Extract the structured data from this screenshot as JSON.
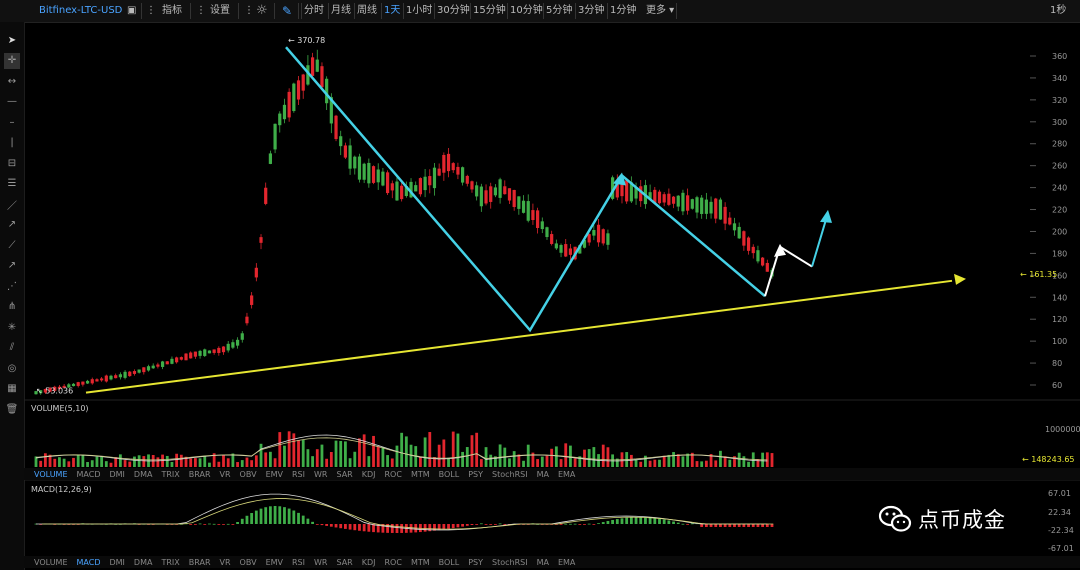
{
  "toolbar": {
    "symbol": "Bitfinex-LTC-USD",
    "indicators": "指标",
    "settings": "设置",
    "timeframes": [
      "分时",
      "月线",
      "周线",
      "1天",
      "1小时",
      "30分钟",
      "15分钟",
      "10分钟",
      "5分钟",
      "3分钟",
      "1分钟"
    ],
    "active_timeframe": "1天",
    "more": "更多",
    "right": "1秒"
  },
  "sidebar_icons": [
    "cursor-icon",
    "crosshair-icon",
    "horizontal-ray-icon",
    "horizontal-line-icon",
    "short-line-icon",
    "vertical-line-icon",
    "price-range-icon",
    "parallel-lines-icon",
    "trend-line-icon",
    "ray-icon",
    "segment-icon",
    "arrow-line-icon",
    "fibonacci-icon",
    "pitchfork-icon",
    "gann-icon",
    "fan-icon",
    "spiral-icon",
    "measure-icon",
    "trash-icon"
  ],
  "indicator_tabs": [
    "VOLUME",
    "MACD",
    "DMI",
    "DMA",
    "TRIX",
    "BRAR",
    "VR",
    "OBV",
    "EMV",
    "RSI",
    "WR",
    "SAR",
    "KDJ",
    "ROC",
    "MTM",
    "BOLL",
    "PSY",
    "StochRSI",
    "MA",
    "EMA"
  ],
  "selected_volume_tab": "VOLUME",
  "selected_macd_tab": "MACD",
  "panels": {
    "volume_label": "VOLUME(5,10)",
    "macd_label": "MACD(12,26,9)"
  },
  "watermark": "点币成金",
  "colors": {
    "up": "#3fae49",
    "down": "#e3262e",
    "cyan": "#45d1e6",
    "yellow": "#e6e632",
    "white": "#ffffff",
    "accent": "#4aa3ff"
  },
  "chart_data": [
    {
      "type": "candlestick",
      "y_ticks": [
        60,
        80,
        100,
        120,
        140,
        160,
        180,
        200,
        220,
        240,
        260,
        280,
        300,
        320,
        340,
        360
      ],
      "ylim": [
        48,
        372
      ],
      "annotations": {
        "high": "370.78",
        "low": "53.036",
        "last": "161.35"
      },
      "cyan_zigzag": [
        {
          "i": 0,
          "y": 368
        },
        {
          "i": 1,
          "y": 110
        },
        {
          "i": 2,
          "y": 251
        },
        {
          "i": 3,
          "y": 141
        }
      ],
      "white_projection": [
        {
          "i": 0,
          "y": 141
        },
        {
          "i": 1,
          "y": 186
        },
        {
          "i": 2,
          "y": 168
        },
        {
          "i": 3,
          "y": 217
        }
      ],
      "yellow_trendline": {
        "start": 53,
        "end": 155
      }
    },
    {
      "type": "bar",
      "name": "VOLUME(5,10)",
      "y_ticks": [
        "1000000"
      ],
      "last": "148243.65"
    },
    {
      "type": "bar",
      "name": "MACD(12,26,9)",
      "y_ticks": [
        "67.01",
        "22.34",
        "-22.34",
        "-67.01"
      ]
    }
  ]
}
